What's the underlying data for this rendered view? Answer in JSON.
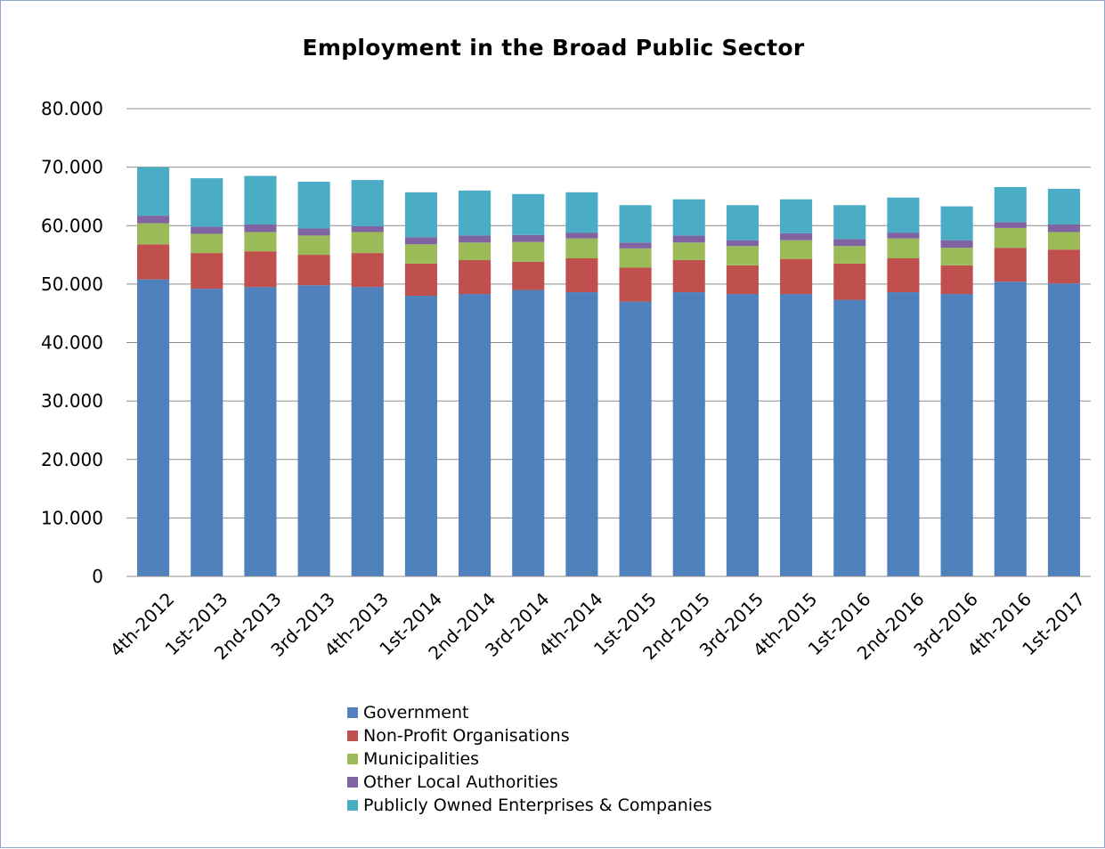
{
  "chart_data": {
    "type": "bar",
    "stacked": true,
    "title": "Employment in the Broad Public Sector",
    "xlabel": "",
    "ylabel": "",
    "ylim": [
      0,
      80000
    ],
    "yticks": [
      0,
      10000,
      20000,
      30000,
      40000,
      50000,
      60000,
      70000,
      80000
    ],
    "ytick_labels": [
      "0",
      "10.000",
      "20.000",
      "30.000",
      "40.000",
      "50.000",
      "60.000",
      "70.000",
      "80.000"
    ],
    "grid": true,
    "legend_position": "bottom",
    "categories": [
      "4th-2012",
      "1st-2013",
      "2nd-2013",
      "3rd-2013",
      "4th-2013",
      "1st-2014",
      "2nd-2014",
      "3rd-2014",
      "4th-2014",
      "1st-2015",
      "2nd-2015",
      "3rd-2015",
      "4th-2015",
      "1st-2016",
      "2nd-2016",
      "3rd-2016",
      "4th-2016",
      "1st-2017"
    ],
    "series": [
      {
        "name": "Government",
        "color": "#4f81bd",
        "values": [
          50800,
          49200,
          49500,
          49800,
          49500,
          48000,
          48300,
          49000,
          48600,
          47000,
          48600,
          48300,
          48300,
          47300,
          48600,
          48300,
          50400,
          50100
        ]
      },
      {
        "name": "Non-Profit Organisations",
        "color": "#c0504d",
        "values": [
          6000,
          6100,
          6100,
          5200,
          5800,
          5500,
          5800,
          4800,
          5800,
          5800,
          5500,
          4900,
          6000,
          6200,
          5800,
          4900,
          5800,
          5800
        ]
      },
      {
        "name": "Municipalities",
        "color": "#9bbb59",
        "values": [
          3600,
          3300,
          3300,
          3300,
          3600,
          3300,
          3000,
          3400,
          3400,
          3300,
          3000,
          3300,
          3200,
          3000,
          3400,
          3000,
          3400,
          3000
        ]
      },
      {
        "name": "Other Local Authorities",
        "color": "#8064a2",
        "values": [
          1300,
          1200,
          1300,
          1200,
          1000,
          1200,
          1200,
          1200,
          1000,
          1000,
          1200,
          1000,
          1200,
          1200,
          1000,
          1300,
          1000,
          1300
        ]
      },
      {
        "name": "Publicly Owned Enterprises & Companies",
        "color": "#4bacc6",
        "values": [
          8300,
          8300,
          8300,
          8000,
          7900,
          7700,
          7700,
          7000,
          6900,
          6400,
          6200,
          6000,
          5800,
          5800,
          6000,
          5800,
          6000,
          6100
        ]
      }
    ]
  }
}
